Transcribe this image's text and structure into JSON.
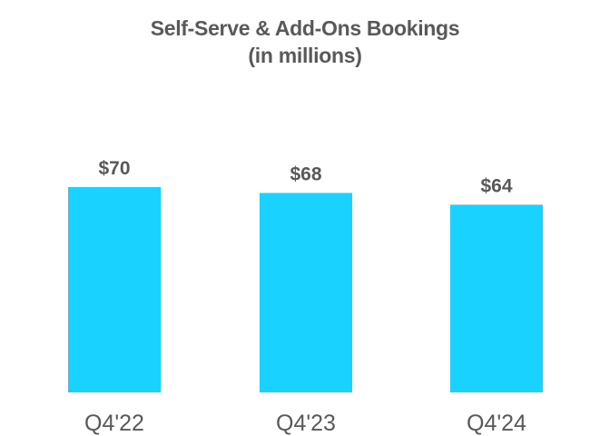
{
  "chart_data": {
    "type": "bar",
    "title_line1": "Self-Serve & Add-Ons Bookings",
    "title_line2": "(in millions)",
    "categories": [
      "Q4'22",
      "Q4'23",
      "Q4'24"
    ],
    "values": [
      70,
      68,
      64
    ],
    "data_labels": [
      "$70",
      "$68",
      "$64"
    ],
    "ylim": [
      0,
      70
    ],
    "grid": false,
    "legend": "none",
    "bar_color": "#1ad2ff",
    "text_color": "#595959"
  }
}
